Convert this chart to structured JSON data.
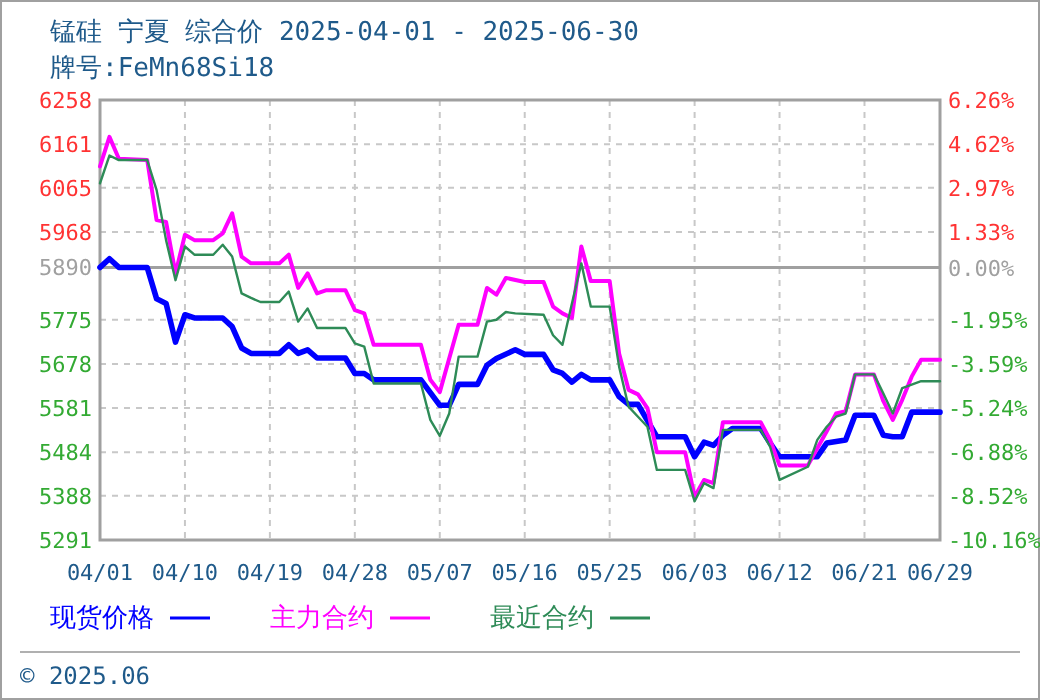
{
  "chart_data": {
    "type": "line",
    "title": "锰硅 宁夏 综合价 2025-04-01 - 2025-06-30",
    "subtitle": "牌号:FeMn68Si18",
    "xlim": [
      "2025-04-01",
      "2025-06-29"
    ],
    "xticks": [
      {
        "value": "2025-04-01",
        "label": "04/01"
      },
      {
        "value": "2025-04-10",
        "label": "04/10"
      },
      {
        "value": "2025-04-19",
        "label": "04/19"
      },
      {
        "value": "2025-04-28",
        "label": "04/28"
      },
      {
        "value": "2025-05-07",
        "label": "05/07"
      },
      {
        "value": "2025-05-16",
        "label": "05/16"
      },
      {
        "value": "2025-05-25",
        "label": "05/25"
      },
      {
        "value": "2025-06-03",
        "label": "06/03"
      },
      {
        "value": "2025-06-12",
        "label": "06/12"
      },
      {
        "value": "2025-06-21",
        "label": "06/21"
      },
      {
        "value": "2025-06-29",
        "label": "06/29"
      }
    ],
    "ylim": [
      5291,
      6258
    ],
    "yticks": [
      6258,
      6161,
      6065,
      5968,
      5890,
      5775,
      5678,
      5581,
      5484,
      5388,
      5291
    ],
    "y2lim": [
      -10.16,
      6.26
    ],
    "y2ticks": [
      {
        "value": 6.26,
        "label": "6.26%"
      },
      {
        "value": 4.62,
        "label": "4.62%"
      },
      {
        "value": 2.97,
        "label": "2.97%"
      },
      {
        "value": 1.33,
        "label": "1.33%"
      },
      {
        "value": 0,
        "label": "0.00%"
      },
      {
        "value": -1.95,
        "label": "-1.95%"
      },
      {
        "value": -3.59,
        "label": "-3.59%"
      },
      {
        "value": -5.24,
        "label": "-5.24%"
      },
      {
        "value": -6.88,
        "label": "-6.88%"
      },
      {
        "value": -8.52,
        "label": "-8.52%"
      },
      {
        "value": -10.16,
        "label": "-10.16%"
      }
    ],
    "grid": true,
    "legend": "bottom",
    "line_style": "solid",
    "marker": "none",
    "ref_lines": [
      {
        "axis": "y",
        "value": 5890,
        "color": "#a0a0a0"
      }
    ],
    "annotations": [
      "© 2025.06"
    ],
    "series": [
      {
        "name": "现货价格",
        "color": "#0000ff",
        "x": [
          "2025-04-01",
          "2025-04-02",
          "2025-04-03",
          "2025-04-06",
          "2025-04-07",
          "2025-04-08",
          "2025-04-09",
          "2025-04-10",
          "2025-04-11",
          "2025-04-14",
          "2025-04-15",
          "2025-04-16",
          "2025-04-17",
          "2025-04-20",
          "2025-04-21",
          "2025-04-22",
          "2025-04-23",
          "2025-04-24",
          "2025-04-27",
          "2025-04-28",
          "2025-04-29",
          "2025-04-30",
          "2025-05-03",
          "2025-05-05",
          "2025-05-07",
          "2025-05-08",
          "2025-05-09",
          "2025-05-11",
          "2025-05-12",
          "2025-05-13",
          "2025-05-15",
          "2025-05-16",
          "2025-05-18",
          "2025-05-19",
          "2025-05-20",
          "2025-05-21",
          "2025-05-22",
          "2025-05-23",
          "2025-05-25",
          "2025-05-26",
          "2025-05-27",
          "2025-05-28",
          "2025-05-30",
          "2025-06-02",
          "2025-06-03",
          "2025-06-04",
          "2025-06-05",
          "2025-06-06",
          "2025-06-07",
          "2025-06-10",
          "2025-06-11",
          "2025-06-12",
          "2025-06-16",
          "2025-06-17",
          "2025-06-19",
          "2025-06-20",
          "2025-06-22",
          "2025-06-23",
          "2025-06-24",
          "2025-06-25",
          "2025-06-26",
          "2025-06-29"
        ],
        "values": [
          5890,
          5909,
          5890,
          5890,
          5821,
          5811,
          5726,
          5786,
          5779,
          5779,
          5760,
          5713,
          5701,
          5701,
          5720,
          5701,
          5709,
          5691,
          5691,
          5657,
          5657,
          5643,
          5643,
          5643,
          5587,
          5587,
          5633,
          5633,
          5675,
          5690,
          5709,
          5699,
          5699,
          5665,
          5657,
          5638,
          5655,
          5643,
          5643,
          5606,
          5589,
          5589,
          5518,
          5518,
          5474,
          5506,
          5499,
          5521,
          5536,
          5536,
          5504,
          5474,
          5474,
          5504,
          5511,
          5565,
          5565,
          5521,
          5518,
          5518,
          5572,
          5572
        ]
      },
      {
        "name": "主力合约",
        "color": "#ff00ff",
        "x": [
          "2025-04-01",
          "2025-04-02",
          "2025-04-03",
          "2025-04-06",
          "2025-04-07",
          "2025-04-08",
          "2025-04-09",
          "2025-04-10",
          "2025-04-11",
          "2025-04-13",
          "2025-04-14",
          "2025-04-15",
          "2025-04-16",
          "2025-04-17",
          "2025-04-20",
          "2025-04-21",
          "2025-04-22",
          "2025-04-23",
          "2025-04-24",
          "2025-04-25",
          "2025-04-27",
          "2025-04-28",
          "2025-04-29",
          "2025-04-30",
          "2025-05-03",
          "2025-05-05",
          "2025-05-06",
          "2025-05-07",
          "2025-05-09",
          "2025-05-11",
          "2025-05-12",
          "2025-05-13",
          "2025-05-14",
          "2025-05-16",
          "2025-05-18",
          "2025-05-19",
          "2025-05-20",
          "2025-05-21",
          "2025-05-22",
          "2025-05-23",
          "2025-05-25",
          "2025-05-26",
          "2025-05-27",
          "2025-05-28",
          "2025-05-29",
          "2025-05-30",
          "2025-06-02",
          "2025-06-03",
          "2025-06-04",
          "2025-06-05",
          "2025-06-06",
          "2025-06-10",
          "2025-06-11",
          "2025-06-12",
          "2025-06-15",
          "2025-06-17",
          "2025-06-18",
          "2025-06-19",
          "2025-06-20",
          "2025-06-22",
          "2025-06-23",
          "2025-06-24",
          "2025-06-25",
          "2025-06-26",
          "2025-06-27",
          "2025-06-29"
        ],
        "values": [
          6112,
          6177,
          6129,
          6126,
          5994,
          5990,
          5877,
          5962,
          5950,
          5950,
          5965,
          6009,
          5914,
          5899,
          5899,
          5918,
          5845,
          5877,
          5833,
          5840,
          5840,
          5796,
          5789,
          5720,
          5720,
          5720,
          5643,
          5616,
          5764,
          5764,
          5845,
          5830,
          5867,
          5858,
          5858,
          5804,
          5789,
          5779,
          5936,
          5860,
          5860,
          5701,
          5621,
          5611,
          5581,
          5484,
          5484,
          5386,
          5423,
          5416,
          5550,
          5550,
          5511,
          5455,
          5455,
          5530,
          5569,
          5574,
          5655,
          5655,
          5596,
          5555,
          5599,
          5650,
          5687,
          5687
        ]
      },
      {
        "name": "最近合约",
        "color": "#2e8b57",
        "x": [
          "2025-04-01",
          "2025-04-02",
          "2025-04-03",
          "2025-04-06",
          "2025-04-07",
          "2025-04-08",
          "2025-04-09",
          "2025-04-10",
          "2025-04-11",
          "2025-04-13",
          "2025-04-14",
          "2025-04-15",
          "2025-04-16",
          "2025-04-17",
          "2025-04-18",
          "2025-04-20",
          "2025-04-21",
          "2025-04-22",
          "2025-04-23",
          "2025-04-24",
          "2025-04-27",
          "2025-04-28",
          "2025-04-29",
          "2025-04-30",
          "2025-05-03",
          "2025-05-05",
          "2025-05-06",
          "2025-05-07",
          "2025-05-08",
          "2025-05-09",
          "2025-05-11",
          "2025-05-12",
          "2025-05-13",
          "2025-05-14",
          "2025-05-15",
          "2025-05-18",
          "2025-05-19",
          "2025-05-20",
          "2025-05-21",
          "2025-05-22",
          "2025-05-23",
          "2025-05-25",
          "2025-05-26",
          "2025-05-27",
          "2025-05-28",
          "2025-05-29",
          "2025-05-30",
          "2025-06-02",
          "2025-06-03",
          "2025-06-04",
          "2025-06-05",
          "2025-06-06",
          "2025-06-10",
          "2025-06-11",
          "2025-06-12",
          "2025-06-15",
          "2025-06-16",
          "2025-06-17",
          "2025-06-18",
          "2025-06-19",
          "2025-06-20",
          "2025-06-22",
          "2025-06-23",
          "2025-06-24",
          "2025-06-25",
          "2025-06-27",
          "2025-06-29"
        ],
        "values": [
          6075,
          6136,
          6126,
          6126,
          6060,
          5950,
          5862,
          5936,
          5918,
          5918,
          5940,
          5914,
          5833,
          5823,
          5814,
          5814,
          5837,
          5771,
          5800,
          5757,
          5757,
          5723,
          5716,
          5635,
          5635,
          5635,
          5555,
          5520,
          5569,
          5694,
          5694,
          5771,
          5775,
          5792,
          5789,
          5786,
          5741,
          5720,
          5811,
          5899,
          5804,
          5804,
          5672,
          5584,
          5562,
          5540,
          5445,
          5445,
          5376,
          5416,
          5405,
          5533,
          5533,
          5496,
          5423,
          5452,
          5511,
          5540,
          5562,
          5569,
          5655,
          5655,
          5613,
          5569,
          5625,
          5640,
          5640
        ]
      }
    ]
  }
}
